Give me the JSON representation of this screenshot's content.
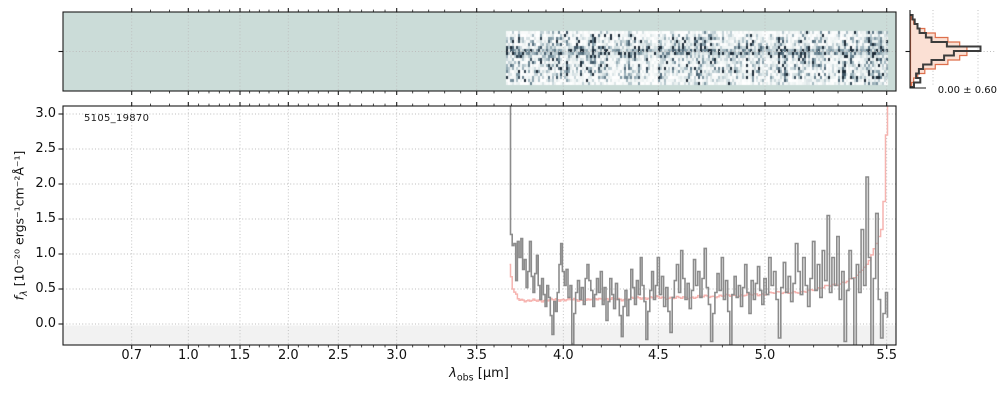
{
  "object_id": "5105_19870",
  "axes": {
    "xlabel": {
      "sym": "λ",
      "sub": "obs",
      "rest": " [μm]"
    },
    "ylabel": {
      "sym": "f",
      "sub": "λ",
      "rest": " [10⁻²⁰ ergs⁻¹cm⁻²Å⁻¹]"
    },
    "x_ticks": [
      0.7,
      1.0,
      1.5,
      2.0,
      2.5,
      3.0,
      3.5,
      4.0,
      4.5,
      5.0,
      5.5
    ],
    "x_minor_step": 0.1,
    "y_ticks": [
      0.0,
      0.5,
      1.0,
      1.5,
      2.0,
      2.5,
      3.0
    ],
    "ylim": [
      -0.3,
      3.11
    ],
    "grid_style": "dotted"
  },
  "colors": {
    "spectrum_line": "#8c8c8c",
    "uncertainty_line": "#f6b4b0",
    "band_below_zero": "#f2f2f2",
    "grid": "#bdbdbd",
    "spine": "#1a1a1a",
    "heatmap_background": "#cbdcd8",
    "hist_bar": "#3c3c3c",
    "hist_model_stroke": "#dd6f4c",
    "hist_model_fill": "#fbe0d4"
  },
  "chart_data": [
    {
      "type": "heatmap",
      "name": "2d-spectrum-strip",
      "x_range_um": [
        3.67,
        5.5
      ],
      "description": "2D spectrum cutout: speckled blue-gray noise with dark trace along slit center, teal background where no data",
      "grid": "dotted verticals at x ticks, dotted horizontal at slit center"
    },
    {
      "type": "histogram",
      "name": "pixel-noise-distribution",
      "orientation": "horizontal",
      "annotation": "0.00 ± 0.60",
      "bins_top_to_bottom": [
        0.03,
        0.06,
        0.1,
        0.13,
        0.22,
        0.3,
        0.52,
        1.0,
        0.62,
        0.48,
        0.3,
        0.18,
        0.12,
        0.08,
        0.14,
        0.05
      ],
      "gaussian_model": {
        "mean": 0.0,
        "sigma": 0.6,
        "amplitude": 0.82,
        "sigma_bins": 2.7
      }
    },
    {
      "type": "line",
      "name": "1d-spectrum",
      "label": "5105_19870",
      "x_start": 3.69,
      "dx": 0.01,
      "flux": [
        3.25,
        1.28,
        1.12,
        1.15,
        0.62,
        1.18,
        0.95,
        1.22,
        0.78,
        0.92,
        0.52,
        0.75,
        1.18,
        0.68,
        0.45,
        0.72,
        0.98,
        0.55,
        0.35,
        0.65,
        0.42,
        0.25,
        0.55,
        0.38,
        0.12,
        -0.15,
        0.32,
        0.18,
        0.45,
        0.85,
        1.15,
        0.75,
        0.55,
        0.78,
        0.38,
        0.55,
        -0.28,
        0.15,
        0.45,
        0.62,
        0.35,
        0.52,
        0.28,
        0.65,
        0.85,
        0.62,
        0.48,
        0.25,
        0.42,
        0.65,
        0.45,
        0.75,
        0.28,
        0.52,
        0.05,
        0.32,
        0.65,
        0.42,
        0.22,
        0.58,
        0.35,
        0.12,
        -0.18,
        0.25,
        0.48,
        0.12,
        0.35,
        0.78,
        0.52,
        0.28,
        0.62,
        0.42,
        0.95,
        0.55,
        0.32,
        -0.22,
        0.18,
        0.48,
        0.75,
        0.35,
        0.55,
        0.95,
        0.42,
        0.68,
        0.25,
        0.52,
        0.18,
        -0.12,
        0.38,
        0.62,
        0.85,
        0.45,
        1.05,
        0.65,
        0.35,
        0.58,
        0.22,
        0.48,
        0.92,
        0.55,
        0.75,
        0.38,
        0.65,
        1.08,
        0.52,
        0.28,
        -0.25,
        0.15,
        0.45,
        0.72,
        0.48,
        0.95,
        0.35,
        0.62,
        0.18,
        -0.3,
        0.42,
        0.68,
        0.38,
        0.55,
        0.25,
        0.52,
        0.85,
        0.45,
        0.15,
        0.62,
        0.35,
        0.58,
        0.82,
        0.48,
        0.28,
        0.65,
        0.42,
        0.95,
        0.55,
        0.75,
        0.35,
        -0.2,
        0.52,
        0.88,
        0.45,
        0.68,
        0.32,
        0.58,
        1.15,
        0.75,
        0.42,
        0.95,
        0.55,
        0.25,
        0.65,
        1.18,
        0.48,
        0.85,
        0.38,
        1.05,
        0.62,
        1.55,
        0.45,
        0.95,
        0.55,
        1.25,
        0.35,
        0.75,
        -0.25,
        0.48,
        1.05,
        0.65,
        -0.35,
        0.85,
        0.45,
        1.35,
        0.55,
        2.1,
        0.95,
        -0.3,
        0.65,
        1.58,
        0.35,
        -0.2,
        0.15,
        0.45,
        0.1
      ],
      "error_points": [
        [
          3.69,
          0.85
        ],
        [
          3.71,
          0.5
        ],
        [
          3.74,
          0.36
        ],
        [
          3.8,
          0.33
        ],
        [
          3.9,
          0.34
        ],
        [
          4.0,
          0.35
        ],
        [
          4.1,
          0.34
        ],
        [
          4.2,
          0.36
        ],
        [
          4.3,
          0.35
        ],
        [
          4.4,
          0.37
        ],
        [
          4.5,
          0.38
        ],
        [
          4.6,
          0.37
        ],
        [
          4.7,
          0.39
        ],
        [
          4.8,
          0.4
        ],
        [
          4.9,
          0.41
        ],
        [
          5.0,
          0.43
        ],
        [
          5.1,
          0.46
        ],
        [
          5.15,
          0.44
        ],
        [
          5.2,
          0.5
        ],
        [
          5.25,
          0.53
        ],
        [
          5.3,
          0.57
        ],
        [
          5.35,
          0.63
        ],
        [
          5.38,
          0.68
        ],
        [
          5.4,
          0.78
        ],
        [
          5.42,
          0.85
        ],
        [
          5.44,
          1.0
        ],
        [
          5.46,
          1.15
        ],
        [
          5.48,
          1.35
        ],
        [
          5.49,
          1.75
        ],
        [
          5.5,
          2.7
        ],
        [
          5.51,
          3.2
        ]
      ],
      "series": [
        {
          "name": "flux",
          "color": "#8c8c8c"
        },
        {
          "name": "uncertainty",
          "color": "#f6b4b0"
        }
      ],
      "shaded_below": 0.0
    }
  ]
}
